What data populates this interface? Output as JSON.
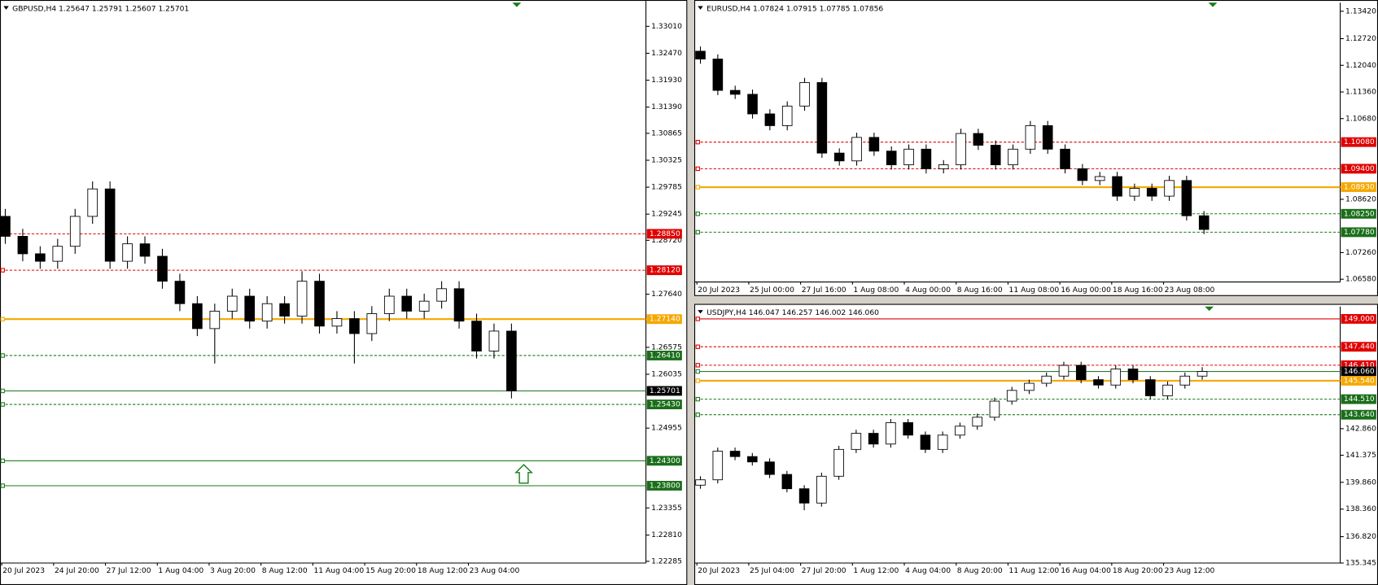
{
  "chart_data": [
    {
      "type": "candlestick",
      "title": "GBPUSD,H4  1.25647 1.25791 1.25607 1.25701",
      "ylim": [
        1.2225,
        1.3352
      ],
      "yticks": [
        {
          "value": 1.3301,
          "label": "1.33010"
        },
        {
          "value": 1.3247,
          "label": "1.32470"
        },
        {
          "value": 1.3193,
          "label": "1.31930"
        },
        {
          "value": 1.3139,
          "label": "1.31390"
        },
        {
          "value": 1.30865,
          "label": "1.30865"
        },
        {
          "value": 1.30325,
          "label": "1.30325"
        },
        {
          "value": 1.29785,
          "label": "1.29785"
        },
        {
          "value": 1.29245,
          "label": "1.29245"
        },
        {
          "value": 1.2872,
          "label": "1.28720"
        },
        {
          "value": 1.2764,
          "label": "1.27640"
        },
        {
          "value": 1.26575,
          "label": "1.26575"
        },
        {
          "value": 1.26035,
          "label": "1.26035"
        },
        {
          "value": 1.24955,
          "label": "1.24955"
        },
        {
          "value": 1.23355,
          "label": "1.23355"
        },
        {
          "value": 1.2281,
          "label": "1.22810"
        },
        {
          "value": 1.22285,
          "label": "1.22285"
        }
      ],
      "xtick_labels": [
        "20 Jul 2023",
        "24 Jul 20:00",
        "27 Jul 12:00",
        "1 Aug 04:00",
        "3 Aug 20:00",
        "8 Aug 12:00",
        "11 Aug 04:00",
        "15 Aug 20:00",
        "18 Aug 12:00",
        "23 Aug 04:00"
      ],
      "levels": [
        {
          "value": 1.2885,
          "label": "1.28850",
          "color": "#e00000",
          "box": "#e00000",
          "dash": true
        },
        {
          "value": 1.2812,
          "label": "1.28120",
          "color": "#e00000",
          "box": "#e00000",
          "dash": true
        },
        {
          "value": 1.2714,
          "label": "1.27140",
          "color": "#f5a800",
          "box": "#f5a800",
          "dash": false
        },
        {
          "value": 1.2641,
          "label": "1.26410",
          "color": "#1a7a1a",
          "box": "#1a6e1a",
          "dash": true
        },
        {
          "value": 1.25701,
          "label": "1.25701",
          "color": "#2e7d32",
          "box": "#000000",
          "dash": false
        },
        {
          "value": 1.2543,
          "label": "1.25430",
          "color": "#1a7a1a",
          "box": "#1a6e1a",
          "dash": true
        },
        {
          "value": 1.243,
          "label": "1.24300",
          "color": "#1a7a1a",
          "box": "#1a6e1a",
          "dash": false
        },
        {
          "value": 1.238,
          "label": "1.23800",
          "color": "#1a7a1a",
          "box": "#1a6e1a",
          "dash": false
        }
      ],
      "candles": [
        [
          1.292,
          1.2935,
          1.2865,
          1.288
        ],
        [
          1.288,
          1.2895,
          1.283,
          1.2845
        ],
        [
          1.2845,
          1.286,
          1.2815,
          1.283
        ],
        [
          1.283,
          1.2875,
          1.2815,
          1.286
        ],
        [
          1.286,
          1.2935,
          1.2845,
          1.292
        ],
        [
          1.292,
          1.299,
          1.2905,
          1.2975
        ],
        [
          1.2975,
          1.299,
          1.2815,
          1.283
        ],
        [
          1.283,
          1.288,
          1.2815,
          1.2865
        ],
        [
          1.2865,
          1.288,
          1.2825,
          1.284
        ],
        [
          1.284,
          1.2855,
          1.2775,
          1.279
        ],
        [
          1.279,
          1.2805,
          1.273,
          1.2745
        ],
        [
          1.2745,
          1.276,
          1.268,
          1.2695
        ],
        [
          1.2695,
          1.2745,
          1.2625,
          1.273
        ],
        [
          1.273,
          1.2775,
          1.2715,
          1.276
        ],
        [
          1.276,
          1.2775,
          1.2695,
          1.271
        ],
        [
          1.271,
          1.276,
          1.2695,
          1.2745
        ],
        [
          1.2745,
          1.276,
          1.2705,
          1.272
        ],
        [
          1.272,
          1.281,
          1.2705,
          1.279
        ],
        [
          1.279,
          1.2805,
          1.2685,
          1.27
        ],
        [
          1.27,
          1.273,
          1.2685,
          1.2715
        ],
        [
          1.2715,
          1.273,
          1.2625,
          1.2685
        ],
        [
          1.2685,
          1.274,
          1.267,
          1.2725
        ],
        [
          1.2725,
          1.2775,
          1.271,
          1.276
        ],
        [
          1.276,
          1.2775,
          1.2715,
          1.273
        ],
        [
          1.273,
          1.2765,
          1.2715,
          1.275
        ],
        [
          1.275,
          1.279,
          1.2735,
          1.2775
        ],
        [
          1.2775,
          1.279,
          1.2695,
          1.271
        ],
        [
          1.271,
          1.2725,
          1.2635,
          1.265
        ],
        [
          1.265,
          1.2705,
          1.2635,
          1.269
        ],
        [
          1.269,
          1.2705,
          1.2555,
          1.257
        ]
      ]
    },
    {
      "type": "candlestick",
      "title": "EURUSD,H4  1.07824 1.07915 1.07785 1.07856",
      "ylim": [
        1.0651,
        1.1364
      ],
      "yticks": [
        {
          "value": 1.1342,
          "label": "1.13420"
        },
        {
          "value": 1.1272,
          "label": "1.12720"
        },
        {
          "value": 1.1204,
          "label": "1.12040"
        },
        {
          "value": 1.1136,
          "label": "1.11360"
        },
        {
          "value": 1.1068,
          "label": "1.10680"
        },
        {
          "value": 1.0862,
          "label": "1.08620"
        },
        {
          "value": 1.0726,
          "label": "1.07260"
        },
        {
          "value": 1.0658,
          "label": "1.06580"
        }
      ],
      "xtick_labels": [
        "20 Jul 2023",
        "25 Jul 00:00",
        "27 Jul 16:00",
        "1 Aug 08:00",
        "4 Aug 00:00",
        "8 Aug 16:00",
        "11 Aug 08:00",
        "16 Aug 00:00",
        "18 Aug 16:00",
        "23 Aug 08:00"
      ],
      "levels": [
        {
          "value": 1.1008,
          "label": "1.10080",
          "color": "#e00000",
          "box": "#e00000",
          "dash": true
        },
        {
          "value": 1.094,
          "label": "1.09400",
          "color": "#e00000",
          "box": "#e00000",
          "dash": true
        },
        {
          "value": 1.0893,
          "label": "1.08930",
          "color": "#f5a800",
          "box": "#f5a800",
          "dash": false
        },
        {
          "value": 1.0825,
          "label": "1.08250",
          "color": "#1a7a1a",
          "box": "#1a6e1a",
          "dash": true
        },
        {
          "value": 1.0778,
          "label": "1.07780",
          "color": "#1a7a1a",
          "box": "#1a6e1a",
          "dash": true
        }
      ],
      "candles": [
        [
          1.124,
          1.1252,
          1.1208,
          1.122
        ],
        [
          1.122,
          1.1232,
          1.1128,
          1.114
        ],
        [
          1.114,
          1.1152,
          1.1118,
          1.113
        ],
        [
          1.113,
          1.1142,
          1.1068,
          1.108
        ],
        [
          1.108,
          1.1092,
          1.1038,
          1.105
        ],
        [
          1.105,
          1.1112,
          1.1038,
          1.11
        ],
        [
          1.11,
          1.1172,
          1.1088,
          1.116
        ],
        [
          1.116,
          1.1172,
          1.0968,
          1.098
        ],
        [
          1.098,
          1.0992,
          1.0948,
          1.096
        ],
        [
          1.096,
          1.1032,
          1.0948,
          1.102
        ],
        [
          1.102,
          1.1032,
          1.0973,
          1.0985
        ],
        [
          1.0985,
          1.0997,
          1.0938,
          1.095
        ],
        [
          1.095,
          1.1002,
          1.0938,
          1.099
        ],
        [
          1.099,
          1.1002,
          1.0928,
          1.094
        ],
        [
          1.094,
          1.0962,
          1.0928,
          1.095
        ],
        [
          1.095,
          1.1042,
          1.0938,
          1.103
        ],
        [
          1.103,
          1.1042,
          1.0988,
          1.1
        ],
        [
          1.1,
          1.1012,
          1.0938,
          1.095
        ],
        [
          1.095,
          1.1002,
          1.0938,
          1.099
        ],
        [
          1.099,
          1.1062,
          1.0978,
          1.105
        ],
        [
          1.105,
          1.1062,
          1.0978,
          1.099
        ],
        [
          1.099,
          1.1002,
          1.0928,
          1.094
        ],
        [
          1.094,
          1.0952,
          1.0898,
          1.091
        ],
        [
          1.091,
          1.0932,
          1.0898,
          1.092
        ],
        [
          1.092,
          1.0932,
          1.0858,
          1.087
        ],
        [
          1.087,
          1.0902,
          1.0858,
          1.089
        ],
        [
          1.089,
          1.0902,
          1.0858,
          1.087
        ],
        [
          1.087,
          1.0922,
          1.0858,
          1.091
        ],
        [
          1.091,
          1.0922,
          1.0808,
          1.082
        ],
        [
          1.082,
          1.0832,
          1.0773,
          1.0785
        ]
      ]
    },
    {
      "type": "candlestick",
      "title": "USDJPY,H4  146.047 146.257 146.002 146.060",
      "ylim": [
        135.345,
        149.69
      ],
      "yticks": [
        {
          "value": 142.86,
          "label": "142.860"
        },
        141.375,
        {
          "value": 139.86,
          "label": "139.860"
        },
        {
          "value": 138.36,
          "label": "138.360"
        },
        {
          "value": 136.82,
          "label": "136.820"
        },
        135.345
      ],
      "xtick_labels": [
        "20 Jul 2023",
        "25 Jul 04:00",
        "27 Jul 20:00",
        "1 Aug 12:00",
        "4 Aug 04:00",
        "8 Aug 20:00",
        "11 Aug 12:00",
        "16 Aug 04:00",
        "18 Aug 20:00",
        "23 Aug 12:00"
      ],
      "levels": [
        {
          "value": 149,
          "label": "149.000",
          "color": "#e00000",
          "box": "#e00000",
          "dash": false
        },
        {
          "value": 147.44,
          "label": "147.440",
          "color": "#e00000",
          "box": "#e00000",
          "dash": true
        },
        {
          "value": 146.41,
          "label": "146.410",
          "color": "#e00000",
          "box": "#e00000",
          "dash": true
        },
        {
          "value": 146.06,
          "label": "146.060",
          "color": "#2e7d32",
          "box": "#000000",
          "dash": false
        },
        {
          "value": 145.54,
          "label": "145.540",
          "color": "#f5a800",
          "box": "#f5a800",
          "dash": false
        },
        {
          "value": 144.51,
          "label": "144.510",
          "color": "#1a7a1a",
          "box": "#1a6e1a",
          "dash": true
        },
        {
          "value": 143.64,
          "label": "143.640",
          "color": "#1a7a1a",
          "box": "#1a6e1a",
          "dash": true
        }
      ],
      "candles": [
        [
          139.7,
          140.2,
          139.5,
          140.0
        ],
        [
          140.0,
          141.8,
          139.8,
          141.6
        ],
        [
          141.6,
          141.8,
          141.1,
          141.3
        ],
        [
          141.3,
          141.5,
          140.8,
          141.0
        ],
        [
          141.0,
          141.2,
          140.1,
          140.3
        ],
        [
          140.3,
          140.5,
          139.3,
          139.5
        ],
        [
          139.5,
          139.7,
          138.3,
          138.7
        ],
        [
          138.7,
          140.4,
          138.5,
          140.2
        ],
        [
          140.2,
          141.9,
          140.0,
          141.7
        ],
        [
          141.7,
          142.8,
          141.5,
          142.6
        ],
        [
          142.6,
          142.8,
          141.8,
          142.0
        ],
        [
          142.0,
          143.4,
          141.8,
          143.2
        ],
        [
          143.2,
          143.4,
          142.3,
          142.5
        ],
        [
          142.5,
          142.7,
          141.5,
          141.7
        ],
        [
          141.7,
          142.7,
          141.5,
          142.5
        ],
        [
          142.5,
          143.2,
          142.3,
          143.0
        ],
        [
          143.0,
          143.7,
          142.8,
          143.5
        ],
        [
          143.5,
          144.6,
          143.3,
          144.4
        ],
        [
          144.4,
          145.2,
          144.2,
          145.0
        ],
        [
          145.0,
          145.6,
          144.8,
          145.4
        ],
        [
          145.4,
          146.0,
          145.2,
          145.8
        ],
        [
          145.8,
          146.6,
          145.6,
          146.4
        ],
        [
          146.4,
          146.6,
          145.4,
          145.6
        ],
        [
          145.6,
          145.8,
          145.1,
          145.3
        ],
        [
          145.3,
          146.4,
          145.1,
          146.2
        ],
        [
          146.2,
          146.4,
          145.4,
          145.6
        ],
        [
          145.6,
          145.8,
          144.5,
          144.7
        ],
        [
          144.7,
          145.5,
          144.5,
          145.3
        ],
        [
          145.3,
          146.0,
          145.1,
          145.8
        ],
        [
          145.8,
          146.3,
          145.6,
          146.06
        ]
      ]
    }
  ]
}
